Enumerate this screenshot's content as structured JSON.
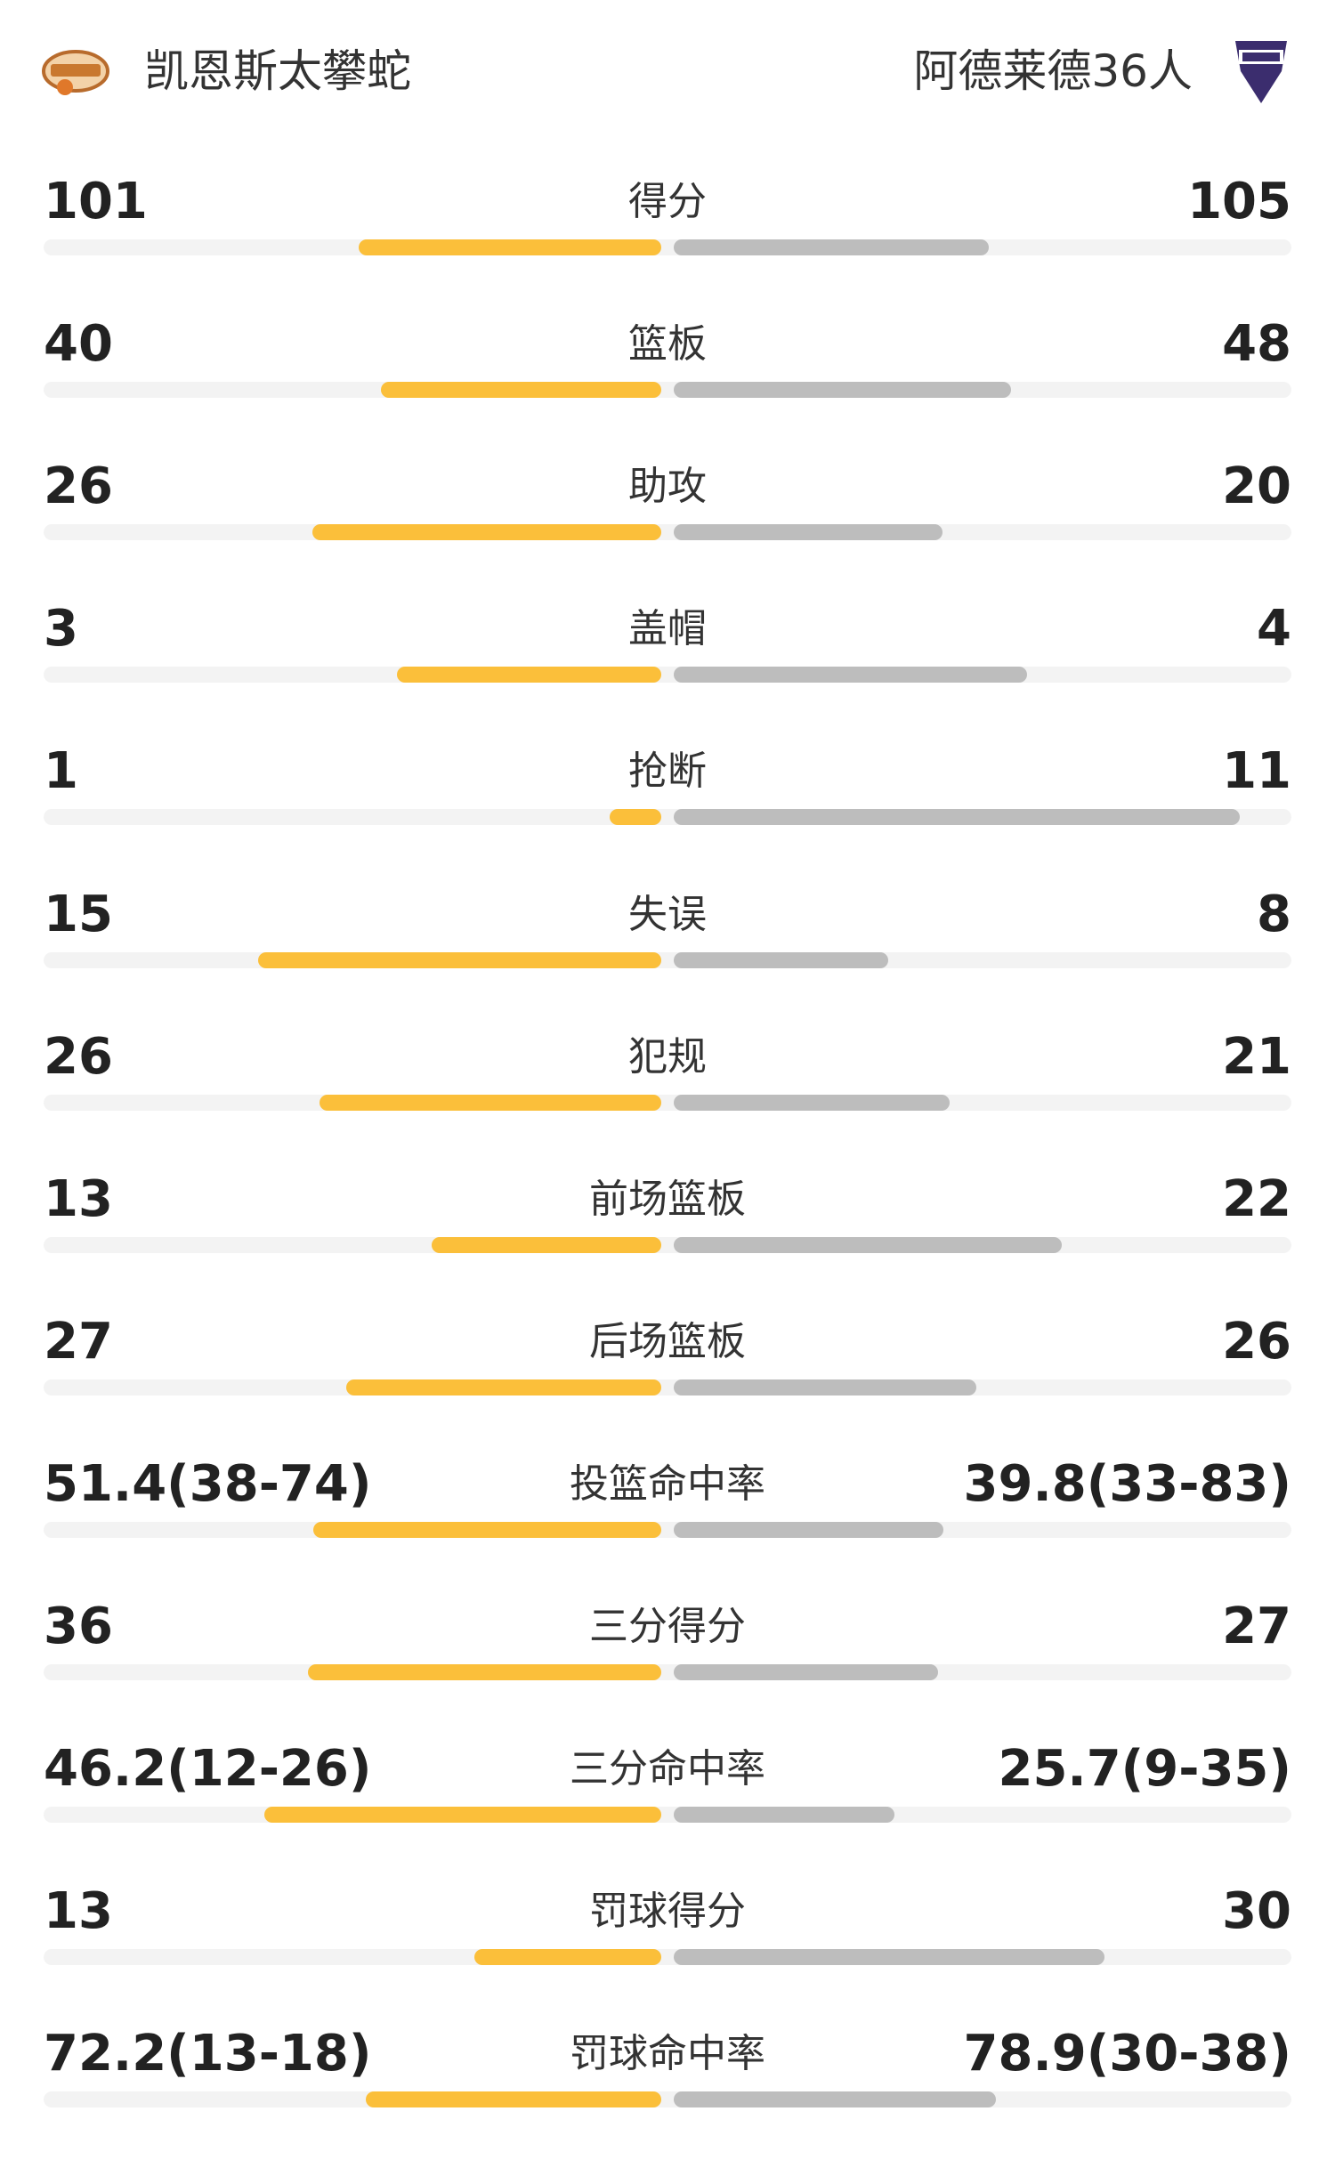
{
  "header": {
    "home_team": "凯恩斯太攀蛇",
    "away_team": "阿德莱德36人"
  },
  "stats": [
    {
      "label": "得分",
      "home": 101,
      "away": 105
    },
    {
      "label": "篮板",
      "home": 40,
      "away": 48
    },
    {
      "label": "助攻",
      "home": 26,
      "away": 20
    },
    {
      "label": "盖帽",
      "home": 3,
      "away": 4
    },
    {
      "label": "抢断",
      "home": 1,
      "away": 11
    },
    {
      "label": "失误",
      "home": 15,
      "away": 8
    },
    {
      "label": "犯规",
      "home": 26,
      "away": 21
    },
    {
      "label": "前场篮板",
      "home": 13,
      "away": 22
    },
    {
      "label": "后场篮板",
      "home": 27,
      "away": 26
    },
    {
      "label": "投篮命中率",
      "home": {
        "value": 51.4,
        "label": "51.4(38-74)"
      },
      "away": {
        "value": 39.8,
        "label": "39.8(33-83)"
      }
    },
    {
      "label": "三分得分",
      "home": 36,
      "away": 27
    },
    {
      "label": "三分命中率",
      "home": {
        "value": 46.2,
        "label": "46.2(12-26)"
      },
      "away": {
        "value": 25.7,
        "label": "25.7(9-35)"
      }
    },
    {
      "label": "罚球得分",
      "home": 13,
      "away": 30
    },
    {
      "label": "罚球命中率",
      "home": {
        "value": 72.2,
        "label": "72.2(13-18)"
      },
      "away": {
        "value": 78.9,
        "label": "78.9(30-38)"
      }
    }
  ]
}
